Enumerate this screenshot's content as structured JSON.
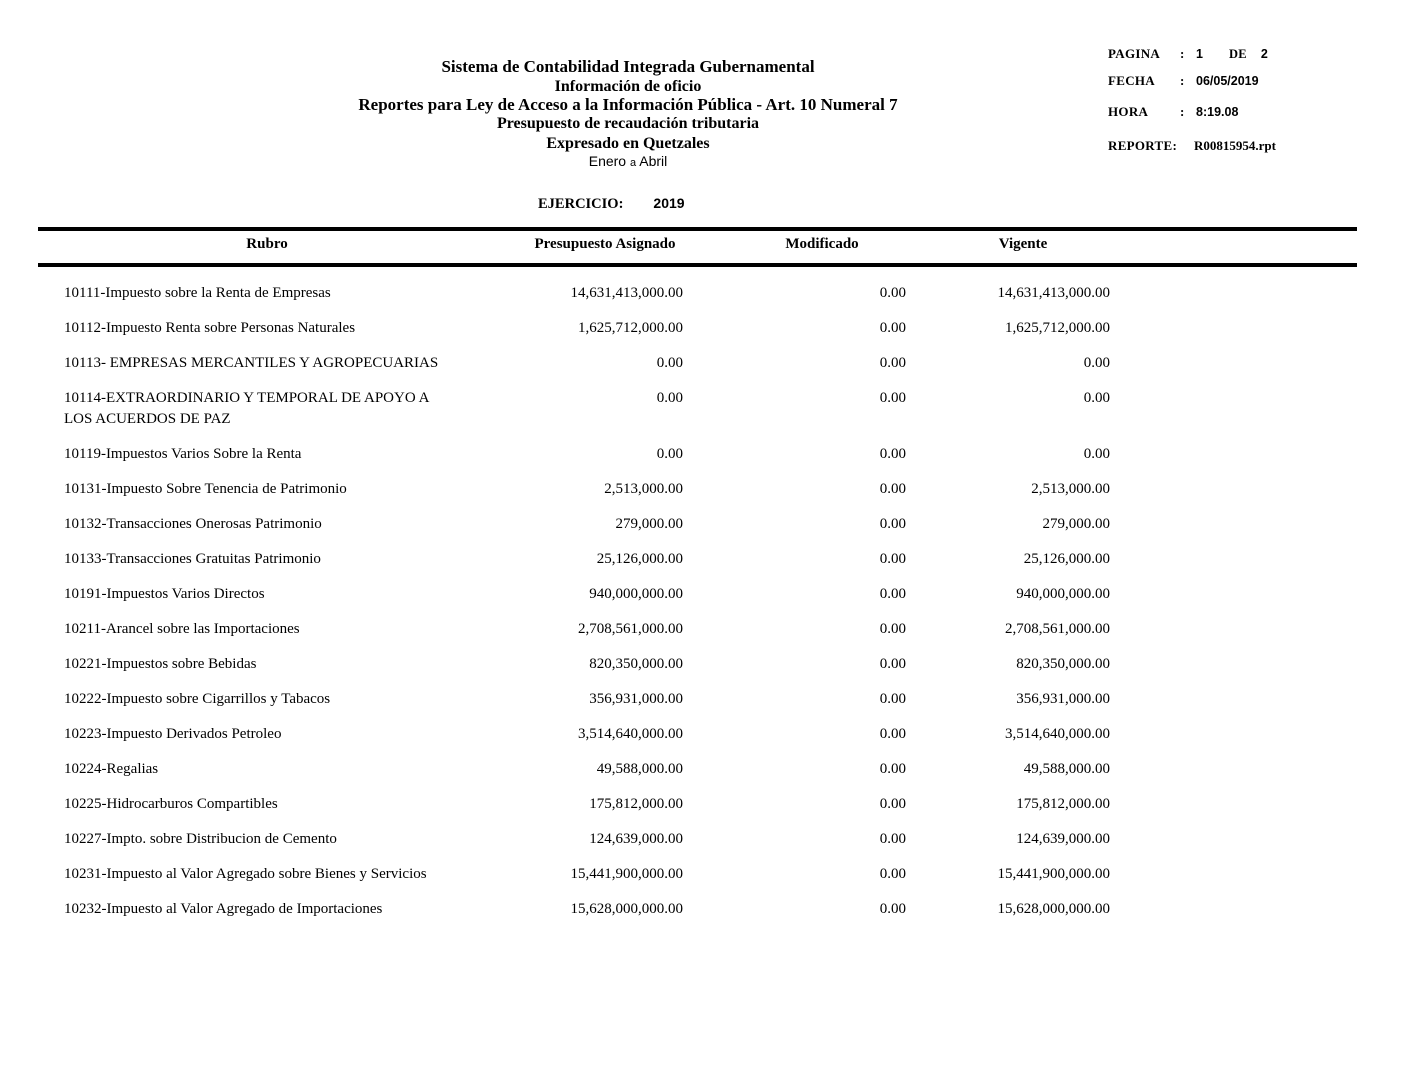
{
  "header": {
    "title_lines": [
      "Sistema de Contabilidad Integrada Gubernamental",
      "Información de oficio",
      "Reportes para Ley de Acceso a la Información Pública - Art. 10 Numeral 7",
      "Presupuesto de recaudación tributaria",
      "Expresado en Quetzales"
    ],
    "period": {
      "from": "Enero",
      "connector": "a",
      "to": "Abril"
    }
  },
  "meta": {
    "pagina_label": "PAGINA",
    "pagina_colon": ":",
    "pagina_value": "1",
    "de_label": "DE",
    "de_value": "2",
    "fecha_label": "FECHA",
    "fecha_colon": ":",
    "fecha_value": "06/05/2019",
    "hora_label": "HORA",
    "hora_colon": ":",
    "hora_value": "8:19.08",
    "reporte_label": "REPORTE:",
    "reporte_value": "R00815954.rpt"
  },
  "ejercicio": {
    "label": "EJERCICIO:",
    "value": "2019"
  },
  "table": {
    "columns": [
      "Rubro",
      "Presupuesto Asignado",
      "Modificado",
      "Vigente"
    ],
    "rows": [
      {
        "rubro": "10111-Impuesto sobre la Renta de Empresas",
        "asignado": "14,631,413,000.00",
        "modificado": "0.00",
        "vigente": "14,631,413,000.00"
      },
      {
        "rubro": "10112-Impuesto Renta sobre Personas Naturales",
        "asignado": "1,625,712,000.00",
        "modificado": "0.00",
        "vigente": "1,625,712,000.00"
      },
      {
        "rubro": "10113- EMPRESAS MERCANTILES Y AGROPECUARIAS",
        "asignado": "0.00",
        "modificado": "0.00",
        "vigente": "0.00"
      },
      {
        "rubro": "10114-EXTRAORDINARIO Y TEMPORAL DE APOYO A LOS ACUERDOS DE PAZ",
        "asignado": "0.00",
        "modificado": "0.00",
        "vigente": "0.00"
      },
      {
        "rubro": "10119-Impuestos Varios Sobre la Renta",
        "asignado": "0.00",
        "modificado": "0.00",
        "vigente": "0.00"
      },
      {
        "rubro": "10131-Impuesto Sobre Tenencia de Patrimonio",
        "asignado": "2,513,000.00",
        "modificado": "0.00",
        "vigente": "2,513,000.00"
      },
      {
        "rubro": "10132-Transacciones Onerosas Patrimonio",
        "asignado": "279,000.00",
        "modificado": "0.00",
        "vigente": "279,000.00"
      },
      {
        "rubro": "10133-Transacciones Gratuitas Patrimonio",
        "asignado": "25,126,000.00",
        "modificado": "0.00",
        "vigente": "25,126,000.00"
      },
      {
        "rubro": "10191-Impuestos Varios Directos",
        "asignado": "940,000,000.00",
        "modificado": "0.00",
        "vigente": "940,000,000.00"
      },
      {
        "rubro": "10211-Arancel sobre las Importaciones",
        "asignado": "2,708,561,000.00",
        "modificado": "0.00",
        "vigente": "2,708,561,000.00"
      },
      {
        "rubro": "10221-Impuestos sobre Bebidas",
        "asignado": "820,350,000.00",
        "modificado": "0.00",
        "vigente": "820,350,000.00"
      },
      {
        "rubro": "10222-Impuesto sobre Cigarrillos y Tabacos",
        "asignado": "356,931,000.00",
        "modificado": "0.00",
        "vigente": "356,931,000.00"
      },
      {
        "rubro": "10223-Impuesto Derivados Petroleo",
        "asignado": "3,514,640,000.00",
        "modificado": "0.00",
        "vigente": "3,514,640,000.00"
      },
      {
        "rubro": "10224-Regalias",
        "asignado": "49,588,000.00",
        "modificado": "0.00",
        "vigente": "49,588,000.00"
      },
      {
        "rubro": "10225-Hidrocarburos Compartibles",
        "asignado": "175,812,000.00",
        "modificado": "0.00",
        "vigente": "175,812,000.00"
      },
      {
        "rubro": "10227-Impto. sobre Distribucion de Cemento",
        "asignado": "124,639,000.00",
        "modificado": "0.00",
        "vigente": "124,639,000.00"
      },
      {
        "rubro": "10231-Impuesto al Valor Agregado sobre Bienes y Servicios",
        "asignado": "15,441,900,000.00",
        "modificado": "0.00",
        "vigente": "15,441,900,000.00"
      },
      {
        "rubro": "10232-Impuesto al Valor Agregado de Importaciones",
        "asignado": "15,628,000,000.00",
        "modificado": "0.00",
        "vigente": "15,628,000,000.00"
      }
    ]
  }
}
